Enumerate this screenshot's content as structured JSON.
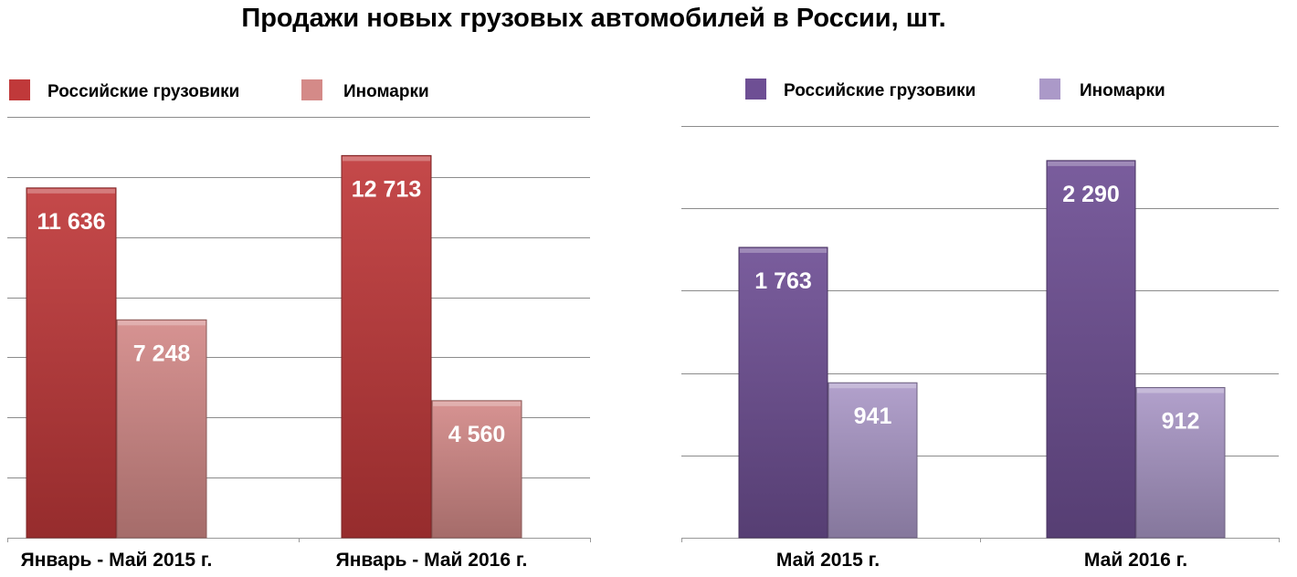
{
  "title": "Продажи новых грузовых автомобилей в России, шт.",
  "chart_data": [
    {
      "type": "bar",
      "categories": [
        "Январь - Май 2015 г.",
        "Январь - Май 2016 г."
      ],
      "series": [
        {
          "name": "Российские грузовики",
          "values": [
            11636,
            12713
          ],
          "labels": [
            "11 636",
            "12 713"
          ],
          "color": "#c0393a"
        },
        {
          "name": "Иномарки",
          "values": [
            7248,
            4560
          ],
          "labels": [
            "7 248",
            "4 560"
          ],
          "color": "#d48a88"
        }
      ],
      "ylim": [
        0,
        14000
      ],
      "ytick_step": 2000,
      "grid": true,
      "legend": "top-left"
    },
    {
      "type": "bar",
      "categories": [
        "Май 2015 г.",
        "Май 2016 г."
      ],
      "series": [
        {
          "name": "Российские грузовики",
          "values": [
            1763,
            2290
          ],
          "labels": [
            "1 763",
            "2 290"
          ],
          "color": "#6e4f94"
        },
        {
          "name": "Иномарки",
          "values": [
            941,
            912
          ],
          "labels": [
            "941",
            "912"
          ],
          "color": "#ab99c8"
        }
      ],
      "ylim": [
        0,
        2500
      ],
      "ytick_step": 500,
      "grid": true,
      "legend": "top"
    }
  ]
}
